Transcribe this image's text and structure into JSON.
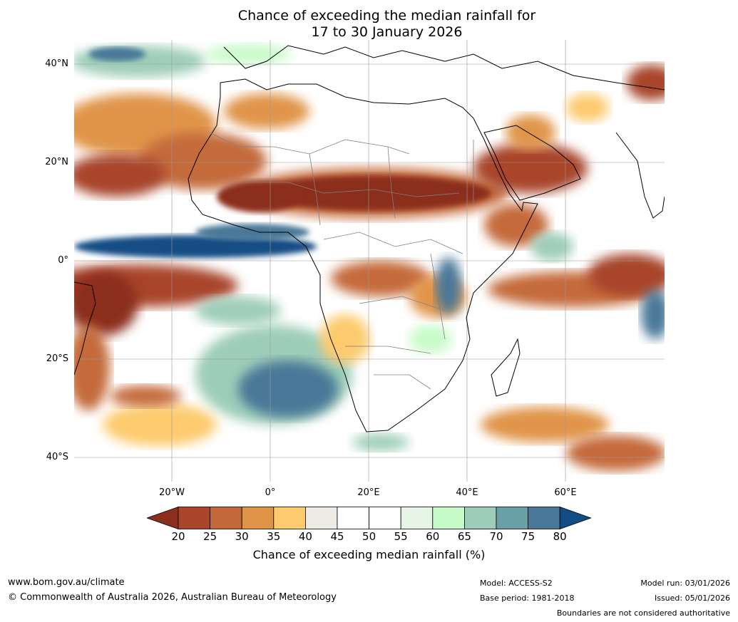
{
  "title_line1": "Chance of exceeding the median rainfall for",
  "title_line2": "17 to 30 January 2026",
  "lat_labels": [
    "40°N",
    "20°N",
    "0°",
    "20°S",
    "40°S"
  ],
  "lon_labels": [
    "20°W",
    "0°",
    "20°E",
    "40°E",
    "60°E"
  ],
  "colorbar": {
    "ticks": [
      "20",
      "25",
      "30",
      "35",
      "40",
      "45",
      "50",
      "55",
      "60",
      "65",
      "70",
      "75",
      "80"
    ],
    "colors": [
      "#8c2d1e",
      "#a8452a",
      "#c46a3a",
      "#e09448",
      "#fdcb6e",
      "#eeebe6",
      "#ffffff",
      "#ffffff",
      "#e6f5e6",
      "#c7fac9",
      "#9dcdb8",
      "#6aa0a8",
      "#4a7898",
      "#124d85"
    ],
    "title": "Chance of exceeding median rainfall (%)"
  },
  "footer": {
    "website": "www.bom.gov.au/climate",
    "copyright": "© Commonwealth of Australia 2026, Australian Bureau of Meteorology",
    "model": "Model: ACCESS-S2",
    "base_period": "Base period: 1981-2018",
    "model_run": "Model run: 03/01/2026",
    "issued": "Issued: 05/01/2026",
    "disclaimer": "Boundaries are not considered authoritative"
  }
}
